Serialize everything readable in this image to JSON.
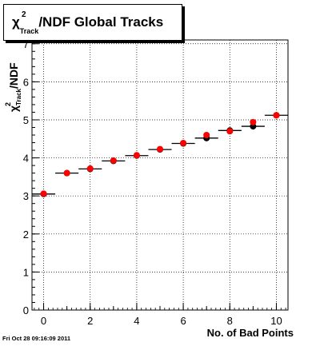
{
  "chart_data": {
    "type": "scatter",
    "title": {
      "symbol": "χ",
      "superscript": "2",
      "subscript": "Track",
      "text": "/NDF  Global Tracks"
    },
    "xlabel": "No. of Bad Points",
    "ylabel": {
      "symbol": "χ",
      "superscript": "2",
      "subscript": "Track",
      "text": "/NDF"
    },
    "xlim": [
      -0.5,
      10.5
    ],
    "ylim": [
      0,
      7.1
    ],
    "x_ticks": [
      "0",
      "2",
      "4",
      "6",
      "8",
      "10"
    ],
    "y_ticks": [
      "0",
      "1",
      "2",
      "3",
      "4",
      "5",
      "6",
      "7"
    ],
    "grid": true,
    "series": [
      {
        "marker_color": "#000000",
        "x": [
          0,
          1,
          2,
          3,
          4,
          5,
          6,
          7,
          8,
          9,
          10
        ],
        "y": [
          3.05,
          3.6,
          3.71,
          3.92,
          4.06,
          4.22,
          4.38,
          4.52,
          4.72,
          4.83,
          5.12
        ],
        "x_err": 0.5
      },
      {
        "marker_color": "#ff0000",
        "x": [
          0,
          1,
          2,
          3,
          4,
          5,
          6,
          7,
          8,
          9,
          10
        ],
        "y": [
          3.06,
          3.6,
          3.72,
          3.93,
          4.07,
          4.23,
          4.39,
          4.6,
          4.7,
          4.94,
          5.12
        ]
      }
    ]
  },
  "footer": {
    "timestamp": "Fri Oct 28 09:16:09 2011"
  }
}
